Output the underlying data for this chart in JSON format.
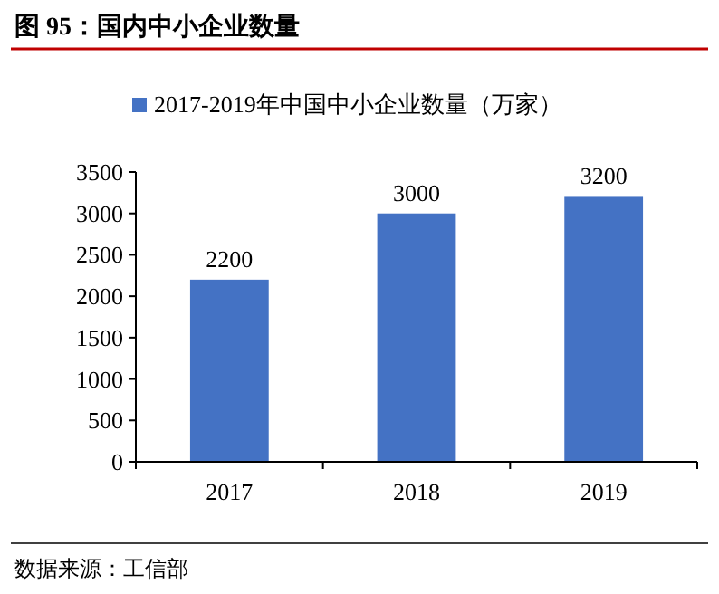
{
  "chart_data": {
    "type": "bar",
    "title": "图 95：国内中小企业数量",
    "categories": [
      "2017",
      "2018",
      "2019"
    ],
    "series": [
      {
        "name": "2017-2019年中国中小企业数量（万家）",
        "color": "#4472c4",
        "values": [
          2200,
          3000,
          3200
        ]
      }
    ],
    "ylim": [
      0,
      3500
    ],
    "yticks": [
      0,
      500,
      1000,
      1500,
      2000,
      2500,
      3000,
      3500
    ],
    "data_labels": true,
    "grid": false,
    "legend": "top left",
    "annotations": [
      "数据来源：工信部"
    ]
  }
}
